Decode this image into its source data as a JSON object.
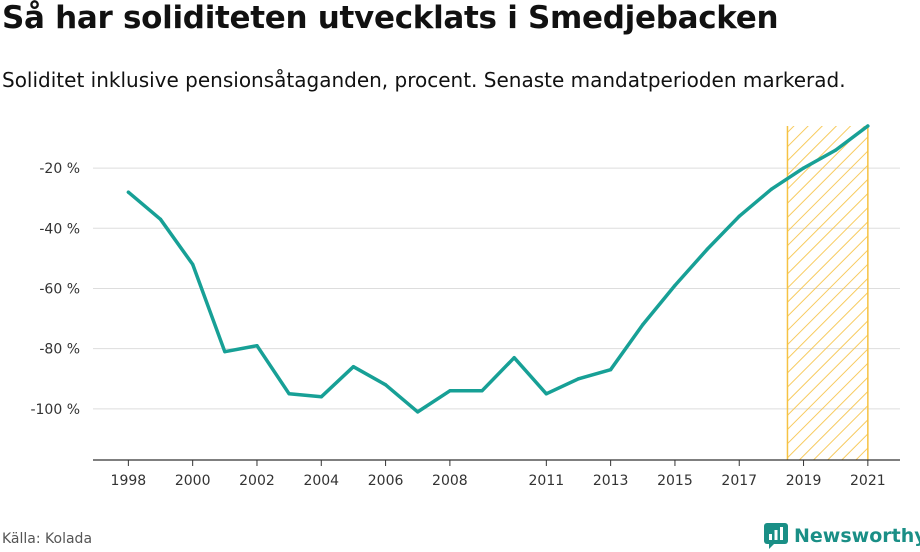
{
  "title": "Så har soliditeten utvecklats i Smedjebacken",
  "subtitle": "Soliditet inklusive pensionsåtaganden, procent. Senaste mandatperioden markerad.",
  "source": "Källa: Kolada",
  "brand": "Newsworthy",
  "colors": {
    "line": "#17a096",
    "highlight": "#f6c243",
    "grid": "#dddddd"
  },
  "chart_data": {
    "type": "line",
    "x": [
      1998,
      1999,
      2000,
      2001,
      2002,
      2003,
      2004,
      2005,
      2006,
      2007,
      2008,
      2009,
      2010,
      2011,
      2012,
      2013,
      2014,
      2015,
      2016,
      2017,
      2018,
      2019,
      2020,
      2021
    ],
    "series": [
      {
        "name": "Soliditet inklusive pensionsåtaganden",
        "values": [
          -28,
          -37,
          -52,
          -81,
          -79,
          -95,
          -96,
          -86,
          -92,
          -101,
          -94,
          -94,
          -83,
          -95,
          -90,
          -87,
          -72,
          -59,
          -47,
          -36,
          -27,
          -20,
          -14,
          -6
        ]
      }
    ],
    "xticks": [
      1998,
      2000,
      2002,
      2004,
      2006,
      2008,
      2011,
      2013,
      2015,
      2017,
      2019,
      2021
    ],
    "xtick_labels": [
      "1998",
      "2000",
      "2002",
      "2004",
      "2006",
      "2008",
      "2011",
      "2013",
      "2015",
      "2017",
      "2019",
      "2021"
    ],
    "yticks": [
      -20,
      -40,
      -60,
      -80,
      -100
    ],
    "ytick_labels": [
      "-20 %",
      "-40 %",
      "-60 %",
      "-80 %",
      "-100 %"
    ],
    "ylim": [
      -117,
      -6
    ],
    "xlim": [
      1996.9,
      2022
    ],
    "highlight_range": [
      2018.5,
      2021
    ],
    "grid": true
  }
}
